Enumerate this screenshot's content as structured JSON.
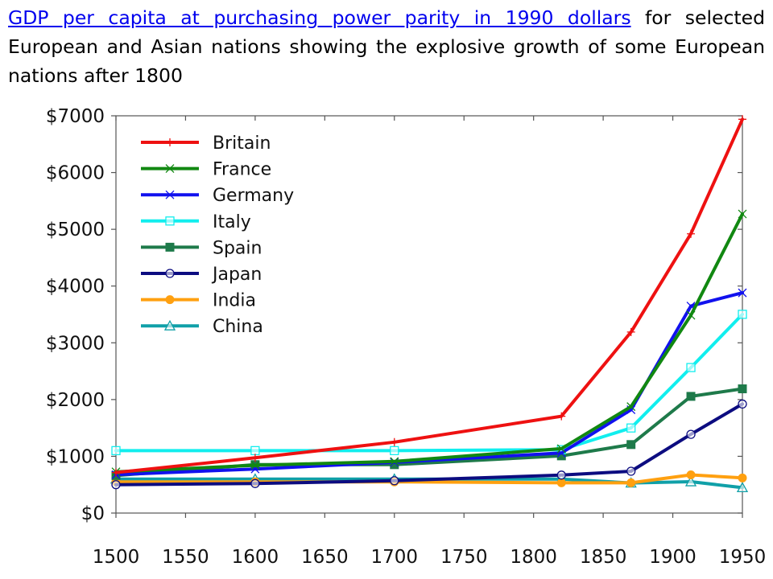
{
  "caption": {
    "link_text": "GDP per capita at purchasing power parity in 1990 dollars",
    "rest_text": " for selected European and Asian nations showing the explosive growth of some European nations after 1800"
  },
  "chart_data": {
    "type": "line",
    "title": "",
    "xlabel": "",
    "ylabel": "",
    "x": [
      1500,
      1600,
      1700,
      1820,
      1870,
      1913,
      1950
    ],
    "xlim": [
      1500,
      1950
    ],
    "ylim": [
      0,
      7000
    ],
    "xticks": [
      1500,
      1550,
      1600,
      1650,
      1700,
      1750,
      1800,
      1850,
      1900,
      1950
    ],
    "yticks": [
      0,
      1000,
      2000,
      3000,
      4000,
      5000,
      6000,
      7000
    ],
    "xtick_labels": [
      "1500",
      "1550",
      "1600",
      "1650",
      "1700",
      "1750",
      "1800",
      "1850",
      "1900",
      "1950"
    ],
    "ytick_labels": [
      "$0",
      "$1000",
      "$2000",
      "$3000",
      "$4000",
      "$5000",
      "$6000",
      "$7000"
    ],
    "grid": false,
    "legend_position": "top-left",
    "series": [
      {
        "name": "Britain",
        "color": "#ee1111",
        "marker": "plus",
        "values": [
          714,
          974,
          1250,
          1706,
          3190,
          4921,
          6939
        ]
      },
      {
        "name": "France",
        "color": "#118811",
        "marker": "x",
        "values": [
          727,
          841,
          910,
          1135,
          1876,
          3485,
          5270
        ]
      },
      {
        "name": "Germany",
        "color": "#1111ee",
        "marker": "x",
        "values": [
          676,
          777,
          894,
          1058,
          1821,
          3648,
          3881
        ]
      },
      {
        "name": "Italy",
        "color": "#11eeee",
        "marker": "square-open",
        "values": [
          1100,
          1100,
          1100,
          1117,
          1499,
          2564,
          3502
        ]
      },
      {
        "name": "Spain",
        "color": "#1e7a4a",
        "marker": "square-filled",
        "values": [
          661,
          853,
          853,
          1008,
          1207,
          2056,
          2189
        ]
      },
      {
        "name": "Japan",
        "color": "#0c0c80",
        "marker": "circle-open",
        "values": [
          500,
          520,
          570,
          669,
          737,
          1387,
          1921
        ]
      },
      {
        "name": "India",
        "color": "#ffa010",
        "marker": "circle-filled",
        "values": [
          550,
          550,
          550,
          533,
          533,
          673,
          619
        ]
      },
      {
        "name": "China",
        "color": "#10a0a8",
        "marker": "triangle-open",
        "values": [
          600,
          600,
          600,
          600,
          530,
          552,
          448
        ]
      }
    ]
  }
}
